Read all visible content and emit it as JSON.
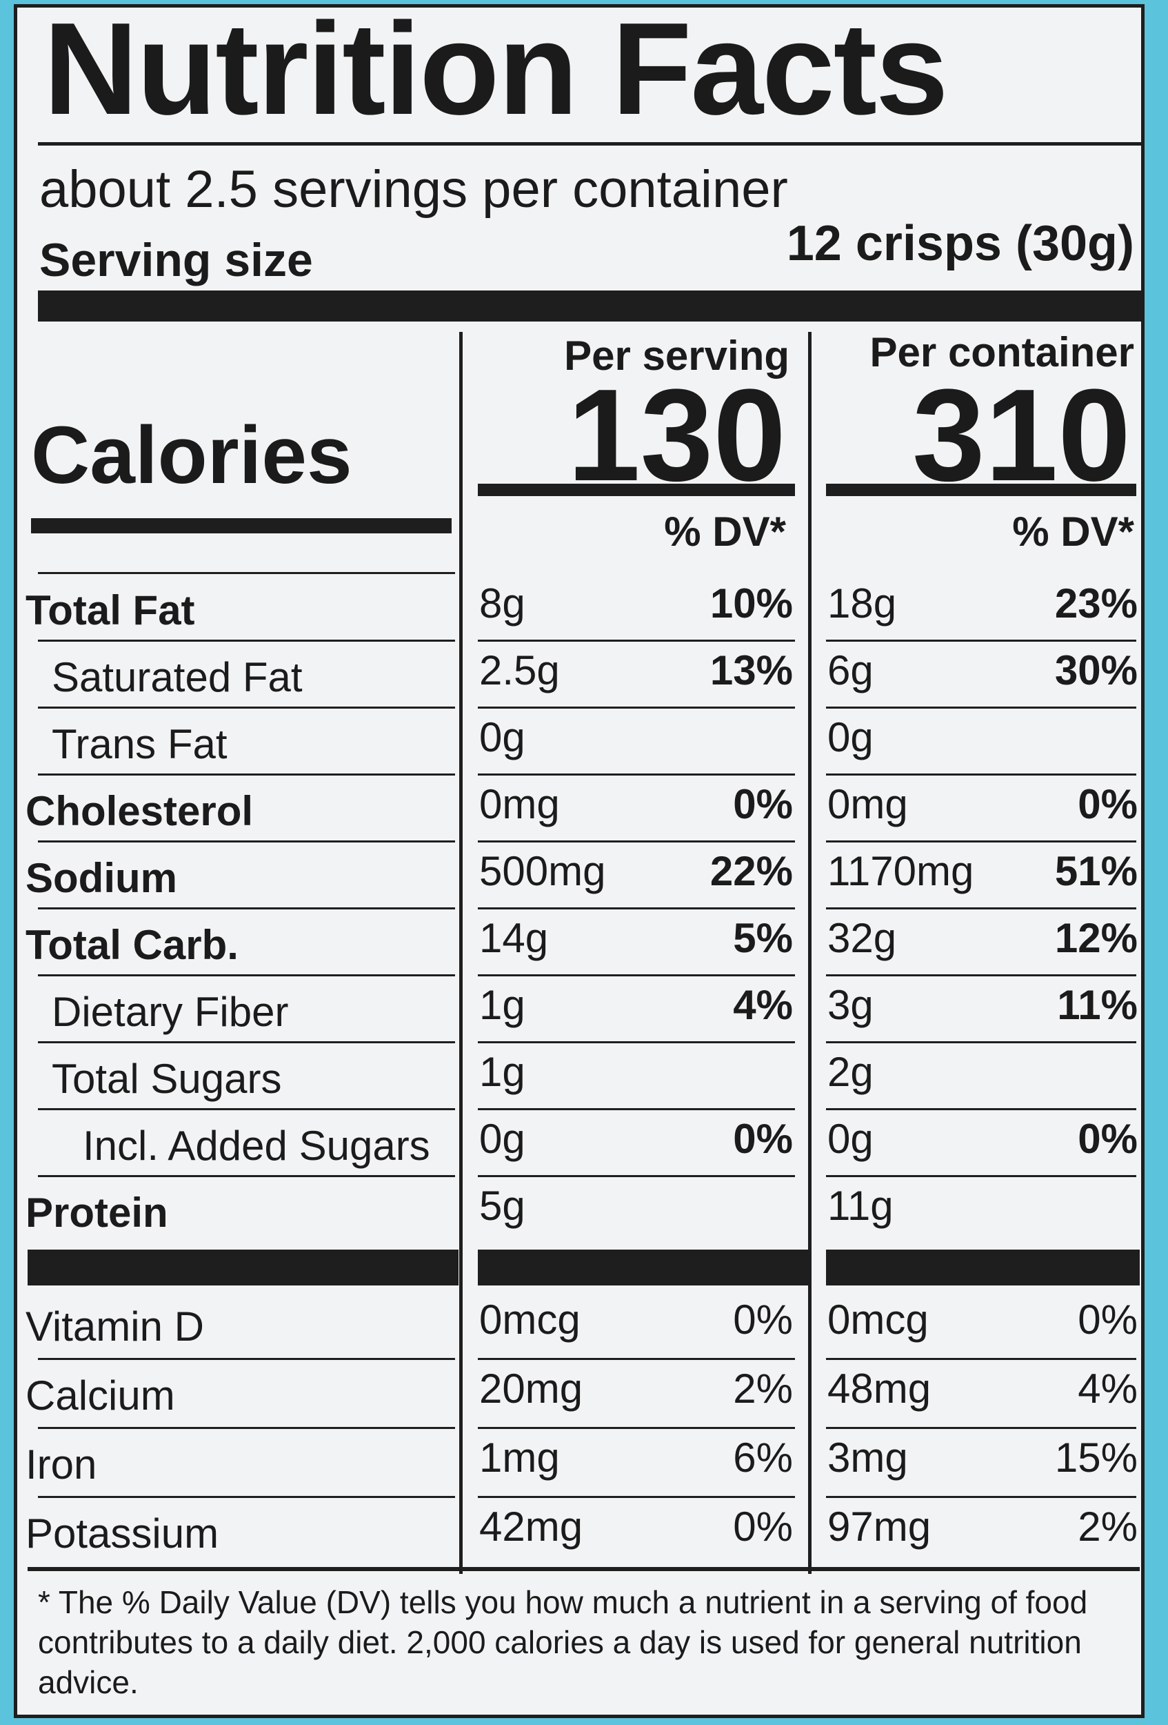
{
  "title": "Nutrition Facts",
  "servings_per_container": "about 2.5 servings per container",
  "serving_size": {
    "label": "Serving size",
    "value": "12 crisps (30g)"
  },
  "columns": {
    "per_serving": "Per serving",
    "per_container": "Per container"
  },
  "calories": {
    "label": "Calories",
    "per_serving": "130",
    "per_container": "310"
  },
  "dv_header": "% DV*",
  "nutrients": [
    {
      "name": "Total Fat",
      "bold": true,
      "serving_amount": "8g",
      "serving_dv": "10%",
      "container_amount": "18g",
      "container_dv": "23%"
    },
    {
      "name": "Saturated Fat",
      "bold": false,
      "indent": 1,
      "serving_amount": "2.5g",
      "serving_dv": "13%",
      "container_amount": "6g",
      "container_dv": "30%"
    },
    {
      "name": "Trans Fat",
      "bold": false,
      "indent": 1,
      "serving_amount": "0g",
      "serving_dv": "",
      "container_amount": "0g",
      "container_dv": ""
    },
    {
      "name": "Cholesterol",
      "bold": true,
      "serving_amount": "0mg",
      "serving_dv": "0%",
      "container_amount": "0mg",
      "container_dv": "0%"
    },
    {
      "name": "Sodium",
      "bold": true,
      "serving_amount": "500mg",
      "serving_dv": "22%",
      "container_amount": "1170mg",
      "container_dv": "51%"
    },
    {
      "name": "Total Carb.",
      "bold": true,
      "serving_amount": "14g",
      "serving_dv": "5%",
      "container_amount": "32g",
      "container_dv": "12%"
    },
    {
      "name": "Dietary Fiber",
      "bold": false,
      "indent": 1,
      "serving_amount": "1g",
      "serving_dv": "4%",
      "container_amount": "3g",
      "container_dv": "11%"
    },
    {
      "name": "Total Sugars",
      "bold": false,
      "indent": 1,
      "serving_amount": "1g",
      "serving_dv": "",
      "container_amount": "2g",
      "container_dv": ""
    },
    {
      "name": "Incl. Added Sugars",
      "bold": false,
      "indent": 2,
      "serving_amount": "0g",
      "serving_dv": "0%",
      "container_amount": "0g",
      "container_dv": "0%"
    },
    {
      "name": "Protein",
      "bold": true,
      "serving_amount": "5g",
      "serving_dv": "",
      "container_amount": "11g",
      "container_dv": ""
    }
  ],
  "vitamins": [
    {
      "name": "Vitamin D",
      "serving_amount": "0mcg",
      "serving_dv": "0%",
      "container_amount": "0mcg",
      "container_dv": "0%"
    },
    {
      "name": "Calcium",
      "serving_amount": "20mg",
      "serving_dv": "2%",
      "container_amount": "48mg",
      "container_dv": "4%"
    },
    {
      "name": "Iron",
      "serving_amount": "1mg",
      "serving_dv": "6%",
      "container_amount": "3mg",
      "container_dv": "15%"
    },
    {
      "name": "Potassium",
      "serving_amount": "42mg",
      "serving_dv": "0%",
      "container_amount": "97mg",
      "container_dv": "2%"
    }
  ],
  "footnote": "* The % Daily Value (DV) tells you how much a nutrient in a serving of food contributes to a daily diet. 2,000 calories a day is used for general nutrition advice."
}
